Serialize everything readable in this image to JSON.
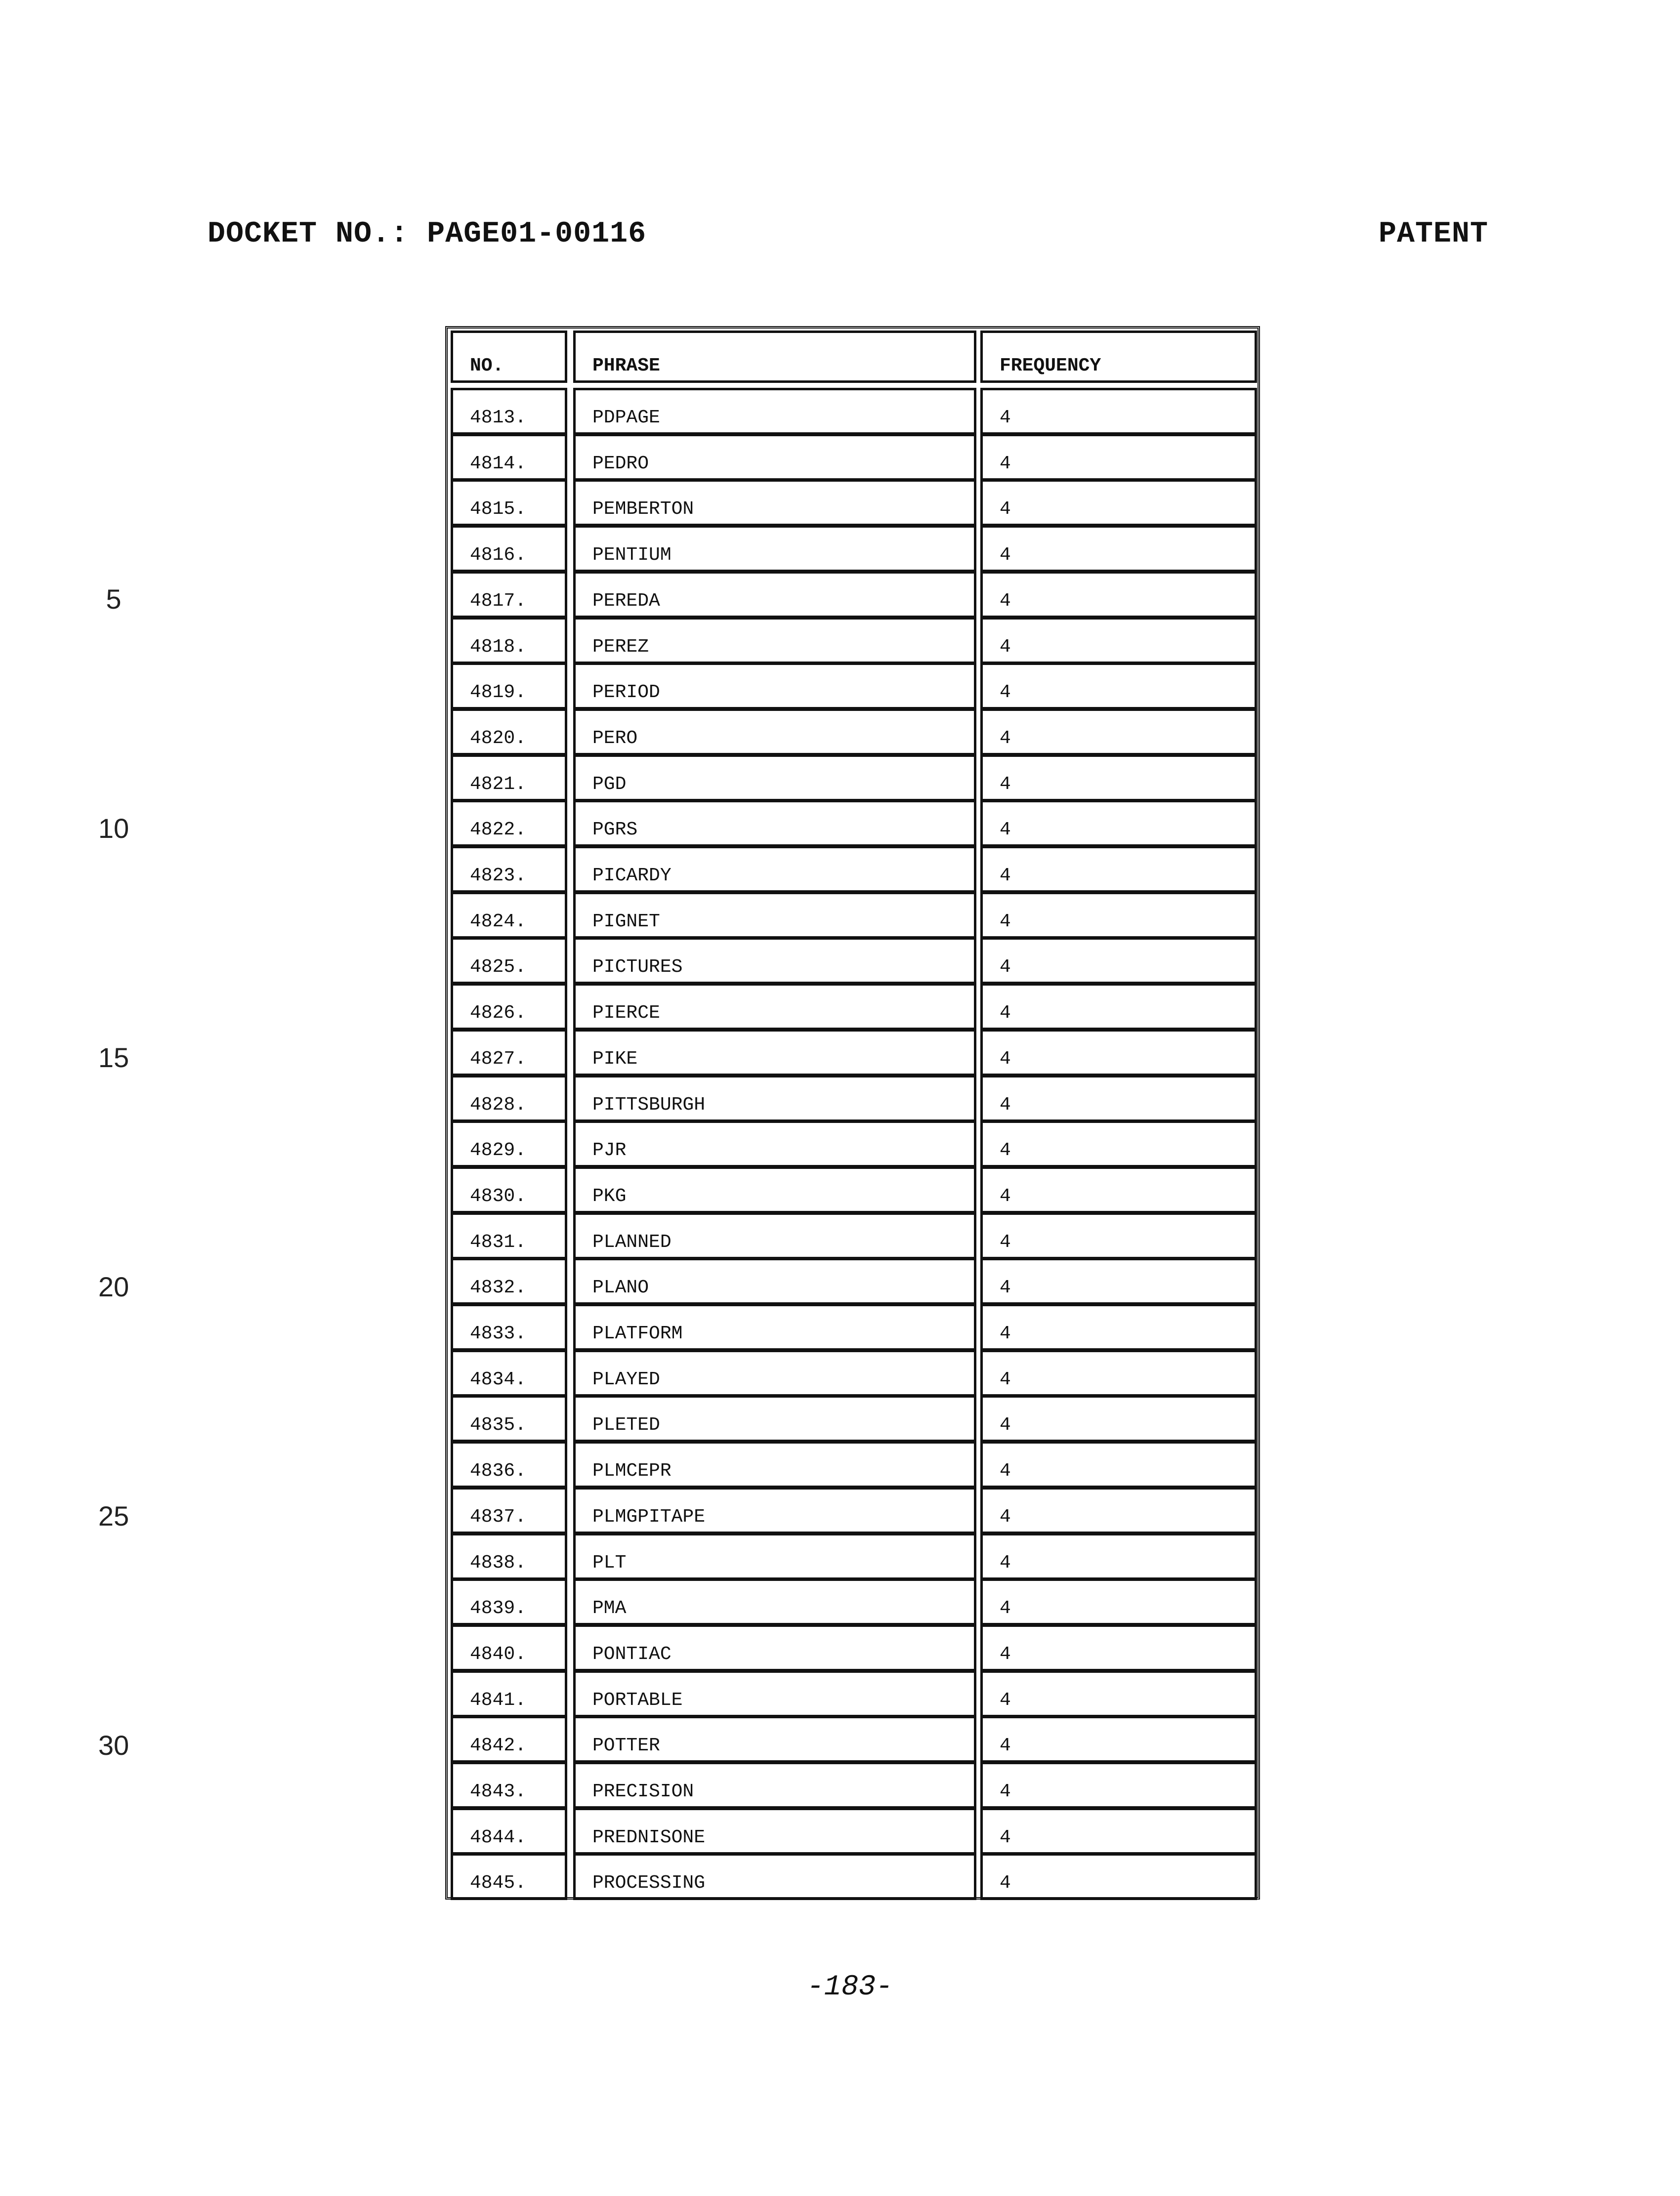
{
  "header": {
    "docket": "DOCKET NO.:  PAGE01-00116",
    "type": "PATENT"
  },
  "line_numbers": [
    "5",
    "10",
    "15",
    "20",
    "25",
    "30"
  ],
  "table": {
    "columns": [
      "NO.",
      "PHRASE",
      "FREQUENCY"
    ],
    "rows": [
      [
        "4813.",
        "PDPAGE",
        "4"
      ],
      [
        "4814.",
        "PEDRO",
        "4"
      ],
      [
        "4815.",
        "PEMBERTON",
        "4"
      ],
      [
        "4816.",
        "PENTIUM",
        "4"
      ],
      [
        "4817.",
        "PEREDA",
        "4"
      ],
      [
        "4818.",
        "PEREZ",
        "4"
      ],
      [
        "4819.",
        "PERIOD",
        "4"
      ],
      [
        "4820.",
        "PERO",
        "4"
      ],
      [
        "4821.",
        "PGD",
        "4"
      ],
      [
        "4822.",
        "PGRS",
        "4"
      ],
      [
        "4823.",
        "PICARDY",
        "4"
      ],
      [
        "4824.",
        "PIGNET",
        "4"
      ],
      [
        "4825.",
        "PICTURES",
        "4"
      ],
      [
        "4826.",
        "PIERCE",
        "4"
      ],
      [
        "4827.",
        "PIKE",
        "4"
      ],
      [
        "4828.",
        "PITTSBURGH",
        "4"
      ],
      [
        "4829.",
        "PJR",
        "4"
      ],
      [
        "4830.",
        "PKG",
        "4"
      ],
      [
        "4831.",
        "PLANNED",
        "4"
      ],
      [
        "4832.",
        "PLANO",
        "4"
      ],
      [
        "4833.",
        "PLATFORM",
        "4"
      ],
      [
        "4834.",
        "PLAYED",
        "4"
      ],
      [
        "4835.",
        "PLETED",
        "4"
      ],
      [
        "4836.",
        "PLMCEPR",
        "4"
      ],
      [
        "4837.",
        "PLMGPITAPE",
        "4"
      ],
      [
        "4838.",
        "PLT",
        "4"
      ],
      [
        "4839.",
        "PMA",
        "4"
      ],
      [
        "4840.",
        "PONTIAC",
        "4"
      ],
      [
        "4841.",
        "PORTABLE",
        "4"
      ],
      [
        "4842.",
        "POTTER",
        "4"
      ],
      [
        "4843.",
        "PRECISION",
        "4"
      ],
      [
        "4844.",
        "PREDNISONE",
        "4"
      ],
      [
        "4845.",
        "PROCESSING",
        "4"
      ]
    ]
  },
  "page_number": "-183-"
}
